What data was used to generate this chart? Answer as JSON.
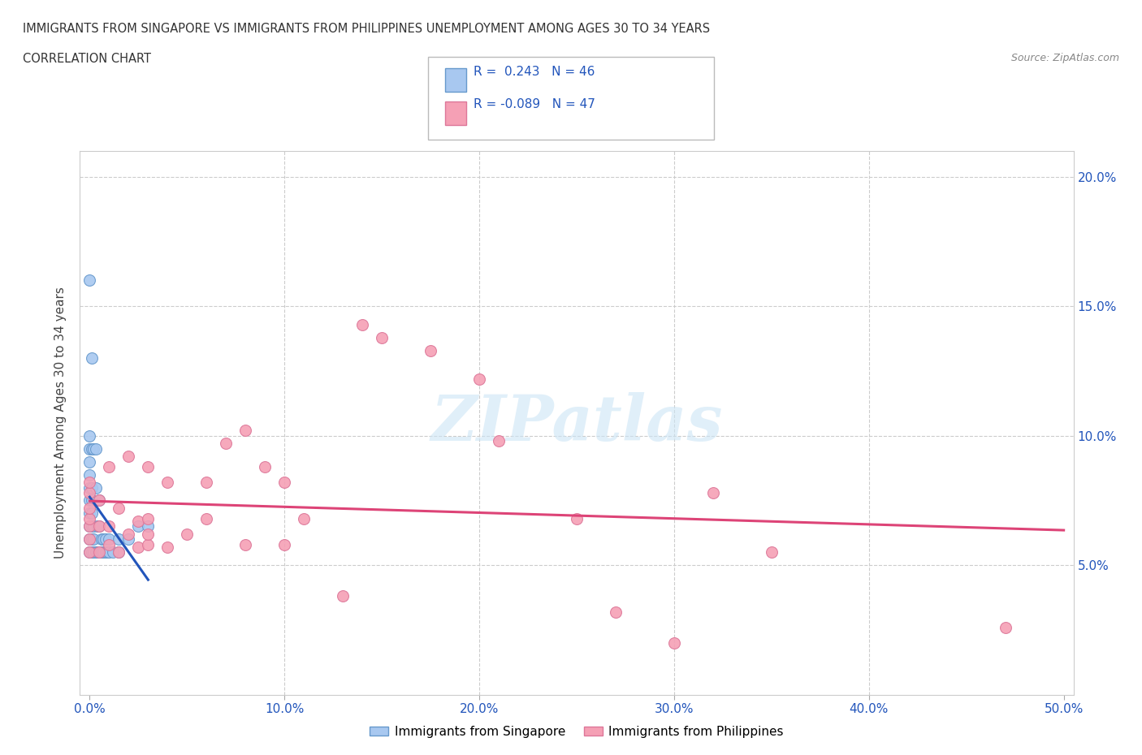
{
  "title_line1": "IMMIGRANTS FROM SINGAPORE VS IMMIGRANTS FROM PHILIPPINES UNEMPLOYMENT AMONG AGES 30 TO 34 YEARS",
  "title_line2": "CORRELATION CHART",
  "source_text": "Source: ZipAtlas.com",
  "ylabel": "Unemployment Among Ages 30 to 34 years",
  "xlim": [
    -0.005,
    0.505
  ],
  "ylim": [
    0.0,
    0.21
  ],
  "xticks": [
    0.0,
    0.1,
    0.2,
    0.3,
    0.4,
    0.5
  ],
  "xticklabels": [
    "0.0%",
    "10.0%",
    "20.0%",
    "30.0%",
    "40.0%",
    "50.0%"
  ],
  "yticks": [
    0.0,
    0.05,
    0.1,
    0.15,
    0.2
  ],
  "yticklabels_right": [
    "",
    "5.0%",
    "10.0%",
    "15.0%",
    "20.0%"
  ],
  "r_singapore": 0.243,
  "n_singapore": 46,
  "r_philippines": -0.089,
  "n_philippines": 47,
  "singapore_color": "#a8c8f0",
  "singapore_edge_color": "#6699cc",
  "singapore_line_color": "#2255bb",
  "philippines_color": "#f5a0b5",
  "philippines_edge_color": "#dd7799",
  "philippines_line_color": "#dd4477",
  "sg_x": [
    0.0,
    0.0,
    0.0,
    0.0,
    0.0,
    0.0,
    0.0,
    0.0,
    0.0,
    0.0,
    0.0,
    0.001,
    0.001,
    0.001,
    0.001,
    0.001,
    0.001,
    0.001,
    0.001,
    0.002,
    0.002,
    0.002,
    0.002,
    0.003,
    0.003,
    0.003,
    0.004,
    0.004,
    0.005,
    0.005,
    0.005,
    0.006,
    0.006,
    0.007,
    0.007,
    0.008,
    0.008,
    0.009,
    0.01,
    0.01,
    0.012,
    0.015,
    0.015,
    0.02,
    0.025,
    0.03
  ],
  "sg_y": [
    0.055,
    0.06,
    0.065,
    0.07,
    0.075,
    0.08,
    0.085,
    0.09,
    0.095,
    0.1,
    0.16,
    0.055,
    0.06,
    0.065,
    0.07,
    0.075,
    0.08,
    0.095,
    0.13,
    0.055,
    0.06,
    0.065,
    0.095,
    0.055,
    0.08,
    0.095,
    0.055,
    0.065,
    0.055,
    0.065,
    0.075,
    0.055,
    0.06,
    0.055,
    0.06,
    0.055,
    0.06,
    0.055,
    0.055,
    0.06,
    0.055,
    0.055,
    0.06,
    0.06,
    0.065,
    0.065
  ],
  "ph_x": [
    0.0,
    0.0,
    0.0,
    0.0,
    0.0,
    0.0,
    0.0,
    0.005,
    0.005,
    0.005,
    0.01,
    0.01,
    0.01,
    0.015,
    0.015,
    0.02,
    0.02,
    0.025,
    0.025,
    0.03,
    0.03,
    0.03,
    0.03,
    0.04,
    0.04,
    0.05,
    0.06,
    0.06,
    0.07,
    0.08,
    0.08,
    0.09,
    0.1,
    0.1,
    0.11,
    0.13,
    0.14,
    0.15,
    0.175,
    0.2,
    0.21,
    0.25,
    0.27,
    0.3,
    0.32,
    0.35,
    0.47
  ],
  "ph_y": [
    0.055,
    0.06,
    0.065,
    0.068,
    0.072,
    0.078,
    0.082,
    0.055,
    0.065,
    0.075,
    0.058,
    0.065,
    0.088,
    0.055,
    0.072,
    0.062,
    0.092,
    0.057,
    0.067,
    0.058,
    0.062,
    0.068,
    0.088,
    0.057,
    0.082,
    0.062,
    0.068,
    0.082,
    0.097,
    0.102,
    0.058,
    0.088,
    0.082,
    0.058,
    0.068,
    0.038,
    0.143,
    0.138,
    0.133,
    0.122,
    0.098,
    0.068,
    0.032,
    0.02,
    0.078,
    0.055,
    0.026
  ]
}
